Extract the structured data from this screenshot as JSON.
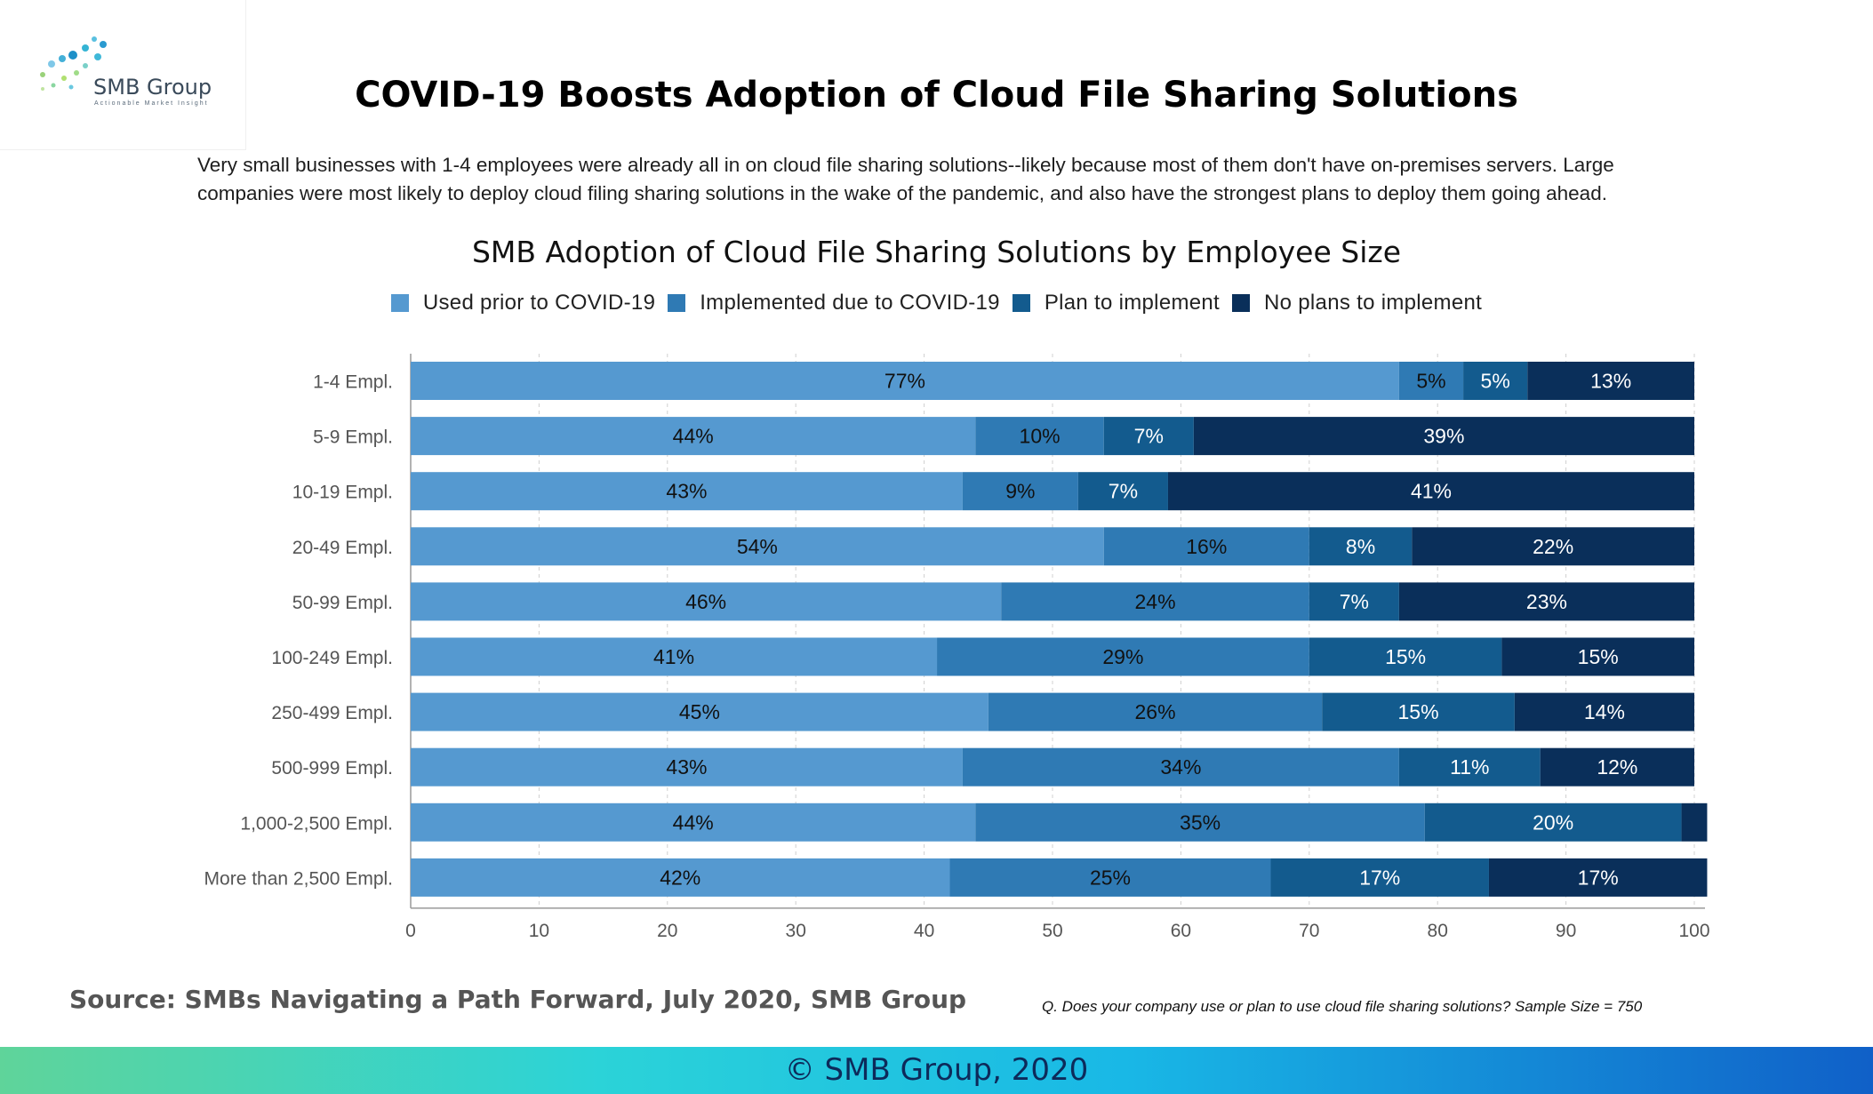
{
  "logo": {
    "name": "SMB Group",
    "tagline": "Actionable Market Insight"
  },
  "title": "COVID-19 Boosts Adoption of Cloud File Sharing Solutions",
  "subtitle_line1": "Very small businesses with 1-4 employees were already all in on cloud file sharing solutions--likely because most of them don't have on-premises servers.  Large",
  "subtitle_line2": "companies were most likely to deploy cloud filing sharing solutions in the wake of the pandemic, and also have the strongest plans to deploy them going ahead.",
  "legend": [
    {
      "label": "Used prior to COVID-19",
      "color": "#5599d0"
    },
    {
      "label": "Implemented due to COVID-19",
      "color": "#2f7ab4"
    },
    {
      "label": "Plan to implement",
      "color": "#135b8e"
    },
    {
      "label": "No plans to implement",
      "color": "#0a2f5a"
    }
  ],
  "chart_data": {
    "type": "bar",
    "orientation": "horizontal",
    "stacked": true,
    "title": "SMB Adoption of Cloud File Sharing Solutions by Employee Size",
    "categories": [
      "1-4 Empl.",
      "5-9 Empl.",
      "10-19 Empl.",
      "20-49 Empl.",
      "50-99 Empl.",
      "100-249 Empl.",
      "250-499 Empl.",
      "500-999 Empl.",
      "1,000-2,500 Empl.",
      "More than 2,500 Empl."
    ],
    "series": [
      {
        "name": "Used prior to COVID-19",
        "color": "#5599d0",
        "values": [
          77,
          44,
          43,
          54,
          46,
          41,
          45,
          43,
          44,
          42
        ]
      },
      {
        "name": "Implemented due to COVID-19",
        "color": "#2f7ab4",
        "values": [
          5,
          10,
          9,
          16,
          24,
          29,
          26,
          34,
          35,
          25
        ]
      },
      {
        "name": "Plan to implement",
        "color": "#135b8e",
        "values": [
          5,
          7,
          7,
          8,
          7,
          15,
          15,
          11,
          20,
          17
        ]
      },
      {
        "name": "No plans to implement",
        "color": "#0a2f5a",
        "values": [
          13,
          39,
          41,
          22,
          23,
          15,
          14,
          12,
          2,
          17
        ]
      }
    ],
    "labels": [
      [
        "77%",
        "5%",
        "5%",
        "13%"
      ],
      [
        "44%",
        "10%",
        "7%",
        "39%"
      ],
      [
        "43%",
        "9%",
        "7%",
        "41%"
      ],
      [
        "54%",
        "16%",
        "8%",
        "22%"
      ],
      [
        "46%",
        "24%",
        "7%",
        "23%"
      ],
      [
        "41%",
        "29%",
        "15%",
        "15%"
      ],
      [
        "45%",
        "26%",
        "15%",
        "14%"
      ],
      [
        "43%",
        "34%",
        "11%",
        "12%"
      ],
      [
        "44%",
        "35%",
        "20%",
        ""
      ],
      [
        "42%",
        "25%",
        "17%",
        "17%"
      ]
    ],
    "xlim": [
      0,
      100
    ],
    "xticks": [
      0,
      10,
      20,
      30,
      40,
      50,
      60,
      70,
      80,
      90,
      100
    ],
    "grid": true,
    "legend_position": "top"
  },
  "source": "Source: SMBs Navigating a Path Forward, July 2020, SMB Group",
  "question": "Q. Does your company use or plan to use cloud file sharing solutions? Sample Size = 750",
  "footer": "© SMB Group, 2020"
}
